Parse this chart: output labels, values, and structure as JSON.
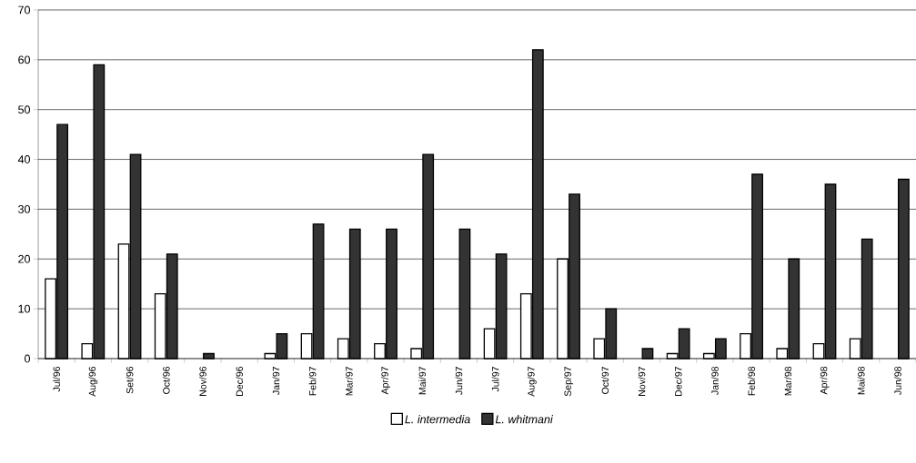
{
  "chart_data": {
    "type": "bar",
    "categories": [
      "Jul/96",
      "Aug/96",
      "Set/96",
      "Oct/96",
      "Nov/96",
      "Dec/96",
      "Jan/97",
      "Feb/97",
      "Mar/97",
      "Apr/97",
      "Mai/97",
      "Jun/97",
      "Jul/97",
      "Aug/97",
      "Sep/97",
      "Oct/97",
      "Nov/97",
      "Dec/97",
      "Jan/98",
      "Feb/98",
      "Mar/98",
      "Apr/98",
      "Mai/98",
      "Jun/98"
    ],
    "series": [
      {
        "name": "L. intermedia",
        "color": "#ffffff",
        "values": [
          16,
          3,
          23,
          13,
          0,
          0,
          1,
          5,
          4,
          3,
          2,
          0,
          6,
          13,
          20,
          4,
          0,
          1,
          1,
          5,
          2,
          3,
          4,
          0
        ]
      },
      {
        "name": "L. whitmani",
        "color": "#333333",
        "values": [
          47,
          59,
          41,
          21,
          1,
          0,
          5,
          27,
          26,
          26,
          41,
          26,
          21,
          62,
          33,
          10,
          2,
          6,
          4,
          37,
          20,
          35,
          24,
          36
        ]
      }
    ],
    "ylim": [
      0,
      70
    ],
    "yticks": [
      0,
      10,
      20,
      30,
      40,
      50,
      60,
      70
    ],
    "grid": "y",
    "legend": "bottom"
  }
}
